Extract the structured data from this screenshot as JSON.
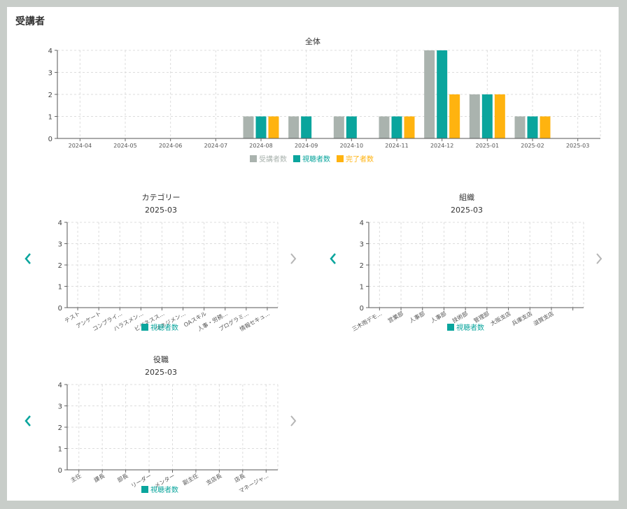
{
  "page": {
    "title": "受講者"
  },
  "colors": {
    "enrolled": "#aab3ae",
    "viewers": "#0aa59d",
    "completed": "#ffb30f",
    "grid": "#dcdcdc",
    "nav_active": "#0aa59d",
    "nav_inactive": "#b5b5b5"
  },
  "chart_data": [
    {
      "id": "overall",
      "type": "bar",
      "title": "全体",
      "subtitle": "",
      "categories": [
        "2024-04",
        "2024-05",
        "2024-06",
        "2024-07",
        "2024-08",
        "2024-09",
        "2024-10",
        "2024-11",
        "2024-12",
        "2025-01",
        "2025-02",
        "2025-03"
      ],
      "series": [
        {
          "name": "受講者数",
          "color": "#aab3ae",
          "values": [
            0,
            0,
            0,
            0,
            1,
            1,
            1,
            1,
            4,
            2,
            1,
            0
          ]
        },
        {
          "name": "視聴者数",
          "color": "#0aa59d",
          "values": [
            0,
            0,
            0,
            0,
            1,
            1,
            1,
            1,
            4,
            2,
            1,
            0
          ]
        },
        {
          "name": "完了者数",
          "color": "#ffb30f",
          "values": [
            0,
            0,
            0,
            0,
            1,
            0,
            0,
            1,
            2,
            2,
            1,
            0
          ]
        }
      ],
      "ylim": [
        0,
        4
      ],
      "yticks": [
        0,
        1,
        2,
        3,
        4
      ],
      "grid": true,
      "legend": "bottom"
    },
    {
      "id": "category",
      "type": "bar",
      "title": "カテゴリー",
      "subtitle": "2025-03",
      "categories": [
        "テスト",
        "アンケート",
        "コンプライ...",
        "ハラスメン...",
        "ビジネスス...",
        "マネジメン...",
        "OAスキル",
        "人事・労務...",
        "プログラミ...",
        "情報セキュ..."
      ],
      "series": [
        {
          "name": "視聴者数",
          "color": "#0aa59d",
          "values": [
            0,
            0,
            0,
            0,
            0,
            0,
            0,
            0,
            0,
            0
          ]
        }
      ],
      "ylim": [
        0,
        4
      ],
      "yticks": [
        0,
        1,
        2,
        3,
        4
      ],
      "grid": true,
      "legend": "bottom"
    },
    {
      "id": "organization",
      "type": "bar",
      "title": "組織",
      "subtitle": "2025-03",
      "categories": [
        "三木雨デモ...",
        "営業部",
        "人事部",
        "人事部",
        "技術部",
        "管理部",
        "大阪支店",
        "兵庫支店",
        "滋賀支店",
        "　"
      ],
      "series": [
        {
          "name": "視聴者数",
          "color": "#0aa59d",
          "values": [
            0,
            0,
            0,
            0,
            0,
            0,
            0,
            0,
            0,
            0
          ]
        }
      ],
      "ylim": [
        0,
        4
      ],
      "yticks": [
        0,
        1,
        2,
        3,
        4
      ],
      "grid": true,
      "legend": "bottom"
    },
    {
      "id": "position",
      "type": "bar",
      "title": "役職",
      "subtitle": "2025-03",
      "categories": [
        "主任",
        "課長",
        "部長",
        "リーダー",
        "メンター",
        "副主任",
        "支店長",
        "店長",
        "マネージャ..."
      ],
      "series": [
        {
          "name": "視聴者数",
          "color": "#0aa59d",
          "values": [
            0,
            0,
            0,
            0,
            0,
            0,
            0,
            0,
            0
          ]
        }
      ],
      "ylim": [
        0,
        4
      ],
      "yticks": [
        0,
        1,
        2,
        3,
        4
      ],
      "grid": true,
      "legend": "bottom"
    }
  ]
}
